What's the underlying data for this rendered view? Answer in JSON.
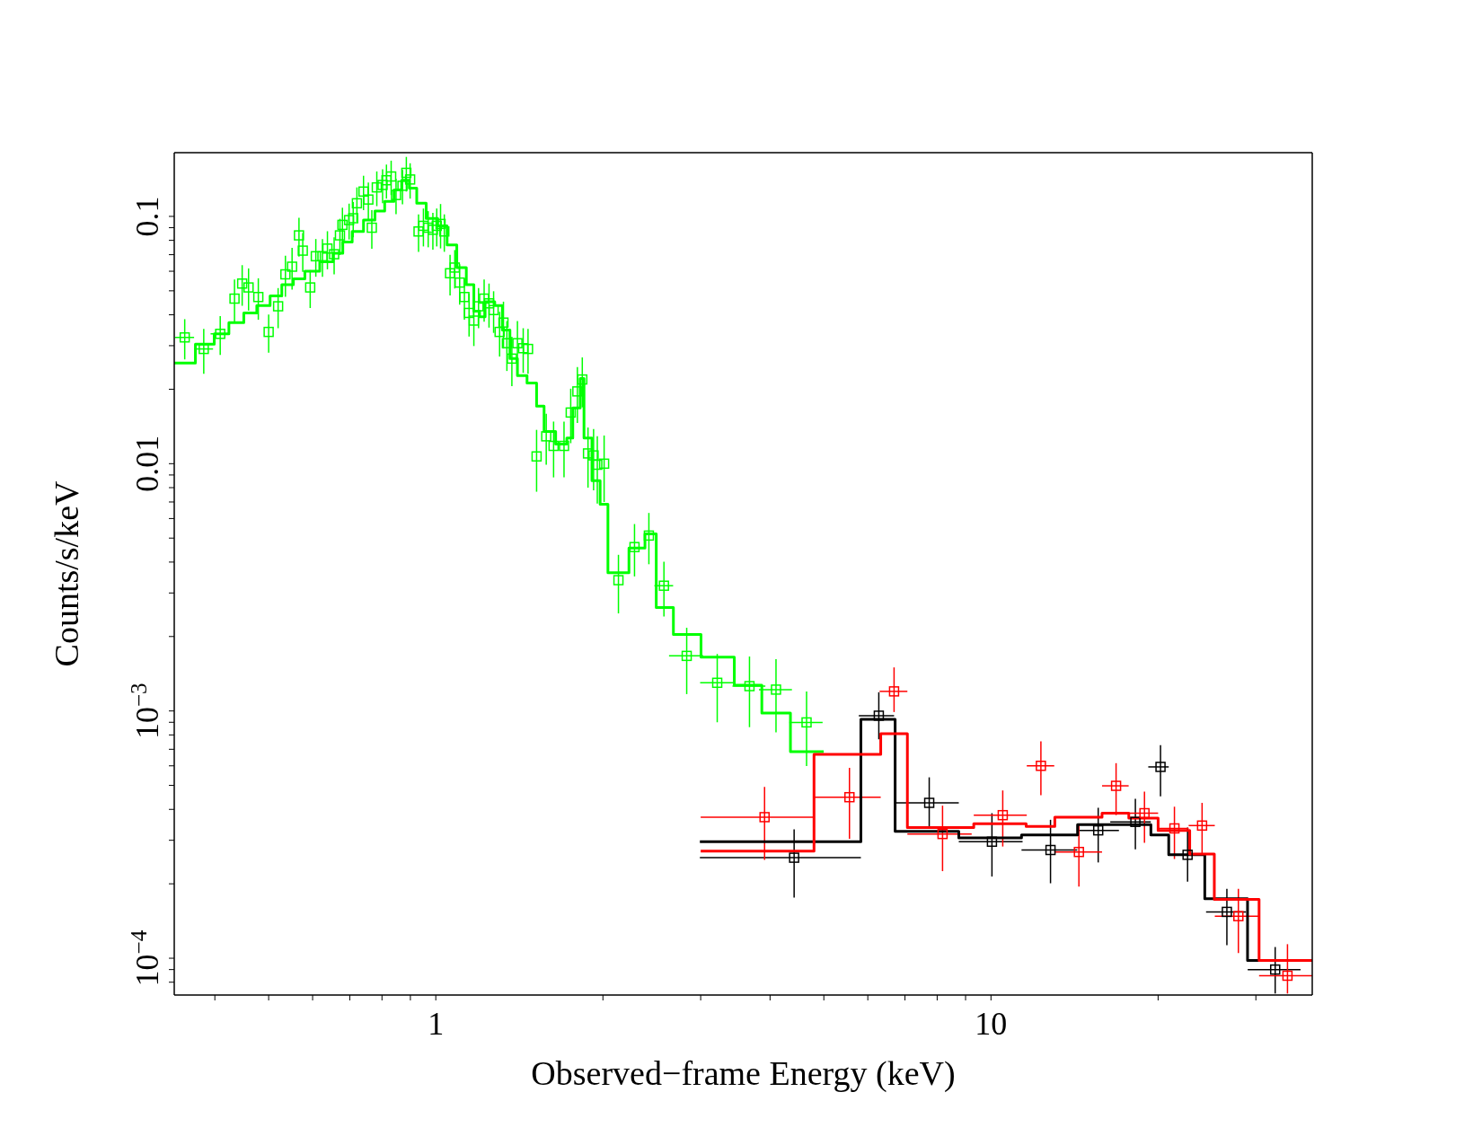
{
  "chart_data": {
    "type": "scatter",
    "xlabel": "Observed−frame Energy (keV)",
    "ylabel": "Counts/s/keV",
    "log": "xy",
    "xlim": [
      0.338,
      37.9
    ],
    "ylim": [
      7.1e-05,
      0.181
    ],
    "xticks": [
      {
        "value": 0.4,
        "label": null
      },
      {
        "value": 0.5,
        "label": null
      },
      {
        "value": 0.6,
        "label": null
      },
      {
        "value": 0.7,
        "label": null
      },
      {
        "value": 0.8,
        "label": null
      },
      {
        "value": 0.9,
        "label": null
      },
      1,
      {
        "value": 2,
        "label": null
      },
      {
        "value": 3,
        "label": null
      },
      {
        "value": 4,
        "label": null
      },
      {
        "value": 5,
        "label": null
      },
      {
        "value": 6,
        "label": null
      },
      {
        "value": 7,
        "label": null
      },
      {
        "value": 8,
        "label": null
      },
      {
        "value": 9,
        "label": null
      },
      10,
      {
        "value": 20,
        "label": null
      },
      {
        "value": 30,
        "label": null
      }
    ],
    "yticks": [
      {
        "value": 8e-05,
        "label": null
      },
      {
        "value": 9e-05,
        "label": null
      },
      {
        "value": 0.0001,
        "label": "10$^{−4}$"
      },
      {
        "value": 0.0002,
        "label": null
      },
      {
        "value": 0.0003,
        "label": null
      },
      {
        "value": 0.0004,
        "label": null
      },
      {
        "value": 0.0005,
        "label": null
      },
      {
        "value": 0.0006,
        "label": null
      },
      {
        "value": 0.0007,
        "label": null
      },
      {
        "value": 0.0008,
        "label": null
      },
      {
        "value": 0.0009,
        "label": null
      },
      {
        "value": 0.001,
        "label": "10$^{−3}$"
      },
      {
        "value": 0.002,
        "label": null
      },
      {
        "value": 0.003,
        "label": null
      },
      {
        "value": 0.004,
        "label": null
      },
      {
        "value": 0.005,
        "label": null
      },
      {
        "value": 0.006,
        "label": null
      },
      {
        "value": 0.007,
        "label": null
      },
      {
        "value": 0.008,
        "label": null
      },
      {
        "value": 0.009,
        "label": null
      },
      0.01,
      {
        "value": 0.02,
        "label": null
      },
      {
        "value": 0.03,
        "label": null
      },
      {
        "value": 0.04,
        "label": null
      },
      {
        "value": 0.05,
        "label": null
      },
      {
        "value": 0.06,
        "label": null
      },
      {
        "value": 0.07,
        "label": null
      },
      {
        "value": 0.08,
        "label": null
      },
      {
        "value": 0.09,
        "label": null
      },
      0.1
    ],
    "marker": "square",
    "series": [
      {
        "color": "#00ff00",
        "x": [
          0.353,
          0.382,
          0.409,
          0.434,
          0.448,
          0.46,
          0.479,
          0.5,
          0.52,
          0.536,
          0.551,
          0.567,
          0.576,
          0.594,
          0.608,
          0.625,
          0.638,
          0.656,
          0.672,
          0.679,
          0.698,
          0.71,
          0.721,
          0.741,
          0.756,
          0.767,
          0.783,
          0.802,
          0.815,
          0.831,
          0.848,
          0.871,
          0.885,
          0.899,
          0.931,
          0.95,
          0.969,
          0.988,
          1.004,
          1.02,
          1.036,
          1.061,
          1.082,
          1.104,
          1.126,
          1.148,
          1.171,
          1.194,
          1.222,
          1.247,
          1.271,
          1.303,
          1.324,
          1.343,
          1.371,
          1.403,
          1.437,
          1.466,
          1.519,
          1.581,
          1.63,
          1.702,
          1.75,
          1.799,
          1.836,
          1.88,
          1.924,
          1.954,
          2.01,
          2.133,
          2.28,
          2.42,
          2.576,
          2.831,
          3.213,
          3.673,
          4.1,
          4.654
        ],
        "values": [
          0.0324,
          0.0291,
          0.0335,
          0.0465,
          0.0535,
          0.0516,
          0.0472,
          0.0341,
          0.0433,
          0.0583,
          0.0626,
          0.0838,
          0.0727,
          0.0516,
          0.069,
          0.069,
          0.0741,
          0.0703,
          0.0838,
          0.0924,
          0.0966,
          0.0983,
          0.113,
          0.126,
          0.117,
          0.09,
          0.131,
          0.134,
          0.14,
          0.145,
          0.122,
          0.133,
          0.15,
          0.141,
          0.0869,
          0.0916,
          0.09,
          0.0883,
          0.0916,
          0.0932,
          0.0869,
          0.0589,
          0.0621,
          0.054,
          0.0472,
          0.0407,
          0.0379,
          0.0433,
          0.0465,
          0.0445,
          0.0418,
          0.0341,
          0.0372,
          0.0307,
          0.0266,
          0.0307,
          0.0293,
          0.0291,
          0.0107,
          0.0129,
          0.0118,
          0.0118,
          0.0161,
          0.0196,
          0.0219,
          0.011,
          0.0108,
          0.0099,
          0.01,
          0.00338,
          0.0046,
          0.00512,
          0.00321,
          0.00167,
          0.0013,
          0.00126,
          0.00122,
          0.000899
        ],
        "errors": [
          0.006,
          0.006,
          0.006,
          0.009,
          0.01,
          0.01,
          0.009,
          0.006,
          0.008,
          0.011,
          0.012,
          0.015,
          0.013,
          0.009,
          0.012,
          0.012,
          0.013,
          0.012,
          0.014,
          0.016,
          0.016,
          0.016,
          0.018,
          0.02,
          0.02,
          0.016,
          0.021,
          0.021,
          0.022,
          0.023,
          0.02,
          0.021,
          0.024,
          0.023,
          0.015,
          0.016,
          0.015,
          0.015,
          0.016,
          0.019,
          0.015,
          0.011,
          0.011,
          0.01,
          0.009,
          0.008,
          0.008,
          0.008,
          0.009,
          0.009,
          0.008,
          0.007,
          0.008,
          0.007,
          0.006,
          0.007,
          0.006,
          0.006,
          0.003,
          0.003,
          0.003,
          0.003,
          0.004,
          0.005,
          0.005,
          0.003,
          0.003,
          0.003,
          0.003,
          0.0009,
          0.0011,
          0.0012,
          0.0008,
          0.0005,
          0.0004,
          0.0004,
          0.0004,
          0.0003
        ],
        "xerrors": [
          0.014,
          0.015,
          0.016,
          null,
          null,
          null,
          null,
          null,
          null,
          null,
          null,
          null,
          null,
          null,
          null,
          null,
          null,
          null,
          null,
          null,
          null,
          null,
          null,
          null,
          null,
          null,
          null,
          null,
          null,
          null,
          null,
          null,
          null,
          null,
          null,
          null,
          null,
          null,
          null,
          null,
          null,
          null,
          null,
          null,
          null,
          null,
          null,
          null,
          null,
          null,
          null,
          null,
          null,
          null,
          null,
          null,
          null,
          null,
          null,
          null,
          null,
          null,
          null,
          null,
          null,
          null,
          null,
          null,
          null,
          null,
          null,
          null,
          0.1,
          0.2,
          0.22,
          0.25,
          0.28,
          0.32
        ]
      },
      {
        "type": "step",
        "color": "#00ff00",
        "marker": "none",
        "line_style": "solid",
        "x": [
          0.338,
          0.369,
          0.399,
          0.424,
          0.451,
          0.476,
          0.503,
          0.528,
          0.554,
          0.581,
          0.618,
          0.653,
          0.68,
          0.707,
          0.741,
          0.777,
          0.809,
          0.841,
          0.868,
          0.896,
          0.924,
          0.961,
          1.008,
          1.048,
          1.091,
          1.135,
          1.171,
          1.199,
          1.227,
          1.277,
          1.318,
          1.36,
          1.403,
          1.46,
          1.519,
          1.567,
          1.644,
          1.722,
          1.765,
          1.82,
          1.849,
          1.911,
          1.977,
          2.042,
          2.228,
          2.381,
          2.495,
          2.679,
          3.004,
          3.449,
          3.866,
          4.353,
          4.997
        ],
        "values": [
          0.0255,
          0.0304,
          0.0335,
          0.0372,
          0.0407,
          0.0436,
          0.0477,
          0.053,
          0.0559,
          0.06,
          0.0655,
          0.071,
          0.0788,
          0.0869,
          0.0966,
          0.105,
          0.115,
          0.128,
          0.14,
          0.13,
          0.113,
          0.098,
          0.0916,
          0.0767,
          0.0621,
          0.053,
          0.0414,
          0.0393,
          0.0452,
          0.0436,
          0.0347,
          0.0266,
          0.0227,
          0.0212,
          0.0171,
          0.0135,
          0.012,
          0.0127,
          0.0168,
          0.0221,
          0.0127,
          0.00853,
          0.00685,
          0.00362,
          0.00456,
          0.0052,
          0.00262,
          0.00204,
          0.00165,
          0.00127,
          0.00098,
          0.000684,
          0.000684
        ]
      },
      {
        "color": "#000000",
        "x": [
          4.42,
          6.28,
          7.74,
          10.04,
          12.8,
          15.6,
          18.2,
          20.2,
          22.6,
          26.6,
          32.5
        ],
        "values": [
          0.000255,
          0.000957,
          0.000425,
          0.000296,
          0.000274,
          0.000329,
          0.000356,
          0.000594,
          0.000262,
          0.000154,
          9e-05
        ],
        "errors": [
          [
            0.000176,
            0.000332
          ],
          [
            0.000768,
            0.00119
          ],
          [
            0.000341,
            0.000539
          ],
          [
            0.000214,
            0.000386
          ],
          [
            0.000201,
            0.000363
          ],
          [
            0.000244,
            0.000406
          ],
          [
            0.000276,
            0.000441
          ],
          [
            0.000452,
            0.000728
          ],
          [
            0.000204,
            0.000338
          ],
          [
            0.000113,
            0.000191
          ],
          [
            7.2e-05,
            0.000111
          ]
        ],
        "xerrors": [
          [
            2.99,
            5.83
          ],
          [
            5.78,
            6.69
          ],
          [
            6.72,
            8.75
          ],
          [
            8.75,
            11.4
          ],
          [
            11.35,
            14.3
          ],
          [
            14.3,
            17.0
          ],
          [
            16.4,
            19.4
          ],
          [
            19.2,
            20.9
          ],
          [
            20.9,
            24.3
          ],
          [
            24.4,
            28.8
          ],
          [
            29.0,
            36.1
          ]
        ]
      },
      {
        "color": "#ff0000",
        "x": [
          3.91,
          5.56,
          6.69,
          8.18,
          10.5,
          12.3,
          14.4,
          16.8,
          18.9,
          21.4,
          24.0,
          27.9,
          34.2
        ],
        "values": [
          0.000372,
          0.000448,
          0.0012,
          0.000318,
          0.000379,
          0.0006,
          0.000269,
          0.000498,
          0.000386,
          0.000335,
          0.000344,
          0.000148,
          8.5e-05
        ],
        "errors": [
          [
            0.00025,
            0.000493
          ],
          [
            0.000304,
            0.000589
          ],
          [
            0.00099,
            0.0015
          ],
          [
            0.000225,
            0.000414
          ],
          [
            0.000283,
            0.000477
          ],
          [
            0.000456,
            0.000753
          ],
          [
            0.000195,
            0.000347
          ],
          [
            0.000379,
            0.000615
          ],
          [
            0.000293,
            0.000472
          ],
          [
            0.000252,
            0.00041
          ],
          [
            0.000266,
            0.000425
          ],
          [
            0.000105,
            0.000191
          ],
          [
            7.2e-05,
            0.000114
          ]
        ],
        "xerrors": [
          [
            3.0,
            4.8
          ],
          [
            4.8,
            6.33
          ],
          [
            6.3,
            7.07
          ],
          [
            7.07,
            9.23
          ],
          [
            9.31,
            11.6
          ],
          [
            11.6,
            13.0
          ],
          [
            13.0,
            15.85
          ],
          [
            15.85,
            17.7
          ],
          [
            17.7,
            20.0
          ],
          [
            20.0,
            22.7
          ],
          [
            22.7,
            25.3
          ],
          [
            25.3,
            30.4
          ],
          [
            30.4,
            37.9
          ]
        ]
      },
      {
        "type": "step",
        "color": "#000000",
        "marker": "none",
        "line_style": "solid",
        "x": [
          2.99,
          5.83,
          6.72,
          8.75,
          11.35,
          14.32,
          19.41,
          20.9,
          24.27,
          28.98,
          37.9
        ],
        "values": [
          0.000296,
          0.000925,
          0.000326,
          0.000307,
          0.000315,
          0.000347,
          0.000315,
          0.000262,
          0.000174,
          9.8e-05,
          9.8e-05
        ]
      },
      {
        "type": "step",
        "color": "#ff0000",
        "marker": "none",
        "line_style": "solid",
        "x": [
          3.0,
          4.8,
          6.33,
          7.07,
          9.31,
          11.57,
          13.03,
          15.85,
          17.71,
          20.0,
          22.8,
          25.25,
          30.4,
          37.9
        ],
        "values": [
          0.000271,
          0.000667,
          0.000809,
          0.000338,
          0.00035,
          0.000341,
          0.000372,
          0.000386,
          0.000369,
          0.000329,
          0.000264,
          0.000173,
          9.8e-05,
          9.8e-05
        ]
      }
    ]
  }
}
